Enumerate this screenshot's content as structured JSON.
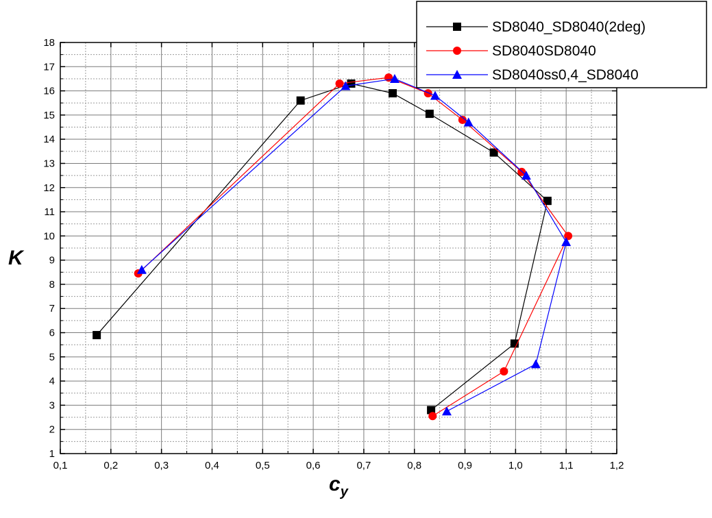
{
  "chart_data": {
    "type": "line",
    "title": "",
    "xlabel": "c",
    "xlabel_subscript": "y",
    "ylabel": "K",
    "xlim": [
      0.1,
      1.2
    ],
    "ylim": [
      1,
      18
    ],
    "x_ticks": [
      "0,1",
      "0,2",
      "0,3",
      "0,4",
      "0,5",
      "0,6",
      "0,7",
      "0,8",
      "0,9",
      "1,0",
      "1,1",
      "1,2"
    ],
    "y_ticks": [
      "1",
      "2",
      "3",
      "4",
      "5",
      "6",
      "7",
      "8",
      "9",
      "10",
      "11",
      "12",
      "13",
      "14",
      "15",
      "16",
      "17",
      "18"
    ],
    "grid": true,
    "legend_position": "top-right",
    "series": [
      {
        "name": "SD8040_SD8040(2deg)",
        "color": "#000000",
        "marker": "square",
        "x": [
          0.172,
          0.575,
          0.675,
          0.757,
          0.83,
          0.957,
          1.063,
          0.998,
          0.833
        ],
        "y": [
          5.9,
          15.6,
          16.3,
          15.9,
          15.05,
          13.45,
          11.45,
          5.55,
          2.8
        ]
      },
      {
        "name": "SD8040SD8040",
        "color": "#ff0000",
        "marker": "circle",
        "x": [
          0.254,
          0.652,
          0.749,
          0.827,
          0.895,
          1.012,
          1.104,
          0.977,
          0.836
        ],
        "y": [
          8.45,
          16.3,
          16.55,
          15.9,
          14.8,
          12.65,
          10.0,
          4.4,
          2.55
        ]
      },
      {
        "name": "SD8040ss0,4_SD8040",
        "color": "#0000ff",
        "marker": "triangle",
        "x": [
          0.261,
          0.664,
          0.761,
          0.841,
          0.907,
          1.021,
          1.1,
          1.04,
          0.864
        ],
        "y": [
          8.6,
          16.2,
          16.5,
          15.8,
          14.7,
          12.5,
          9.75,
          4.7,
          2.75
        ]
      }
    ]
  }
}
